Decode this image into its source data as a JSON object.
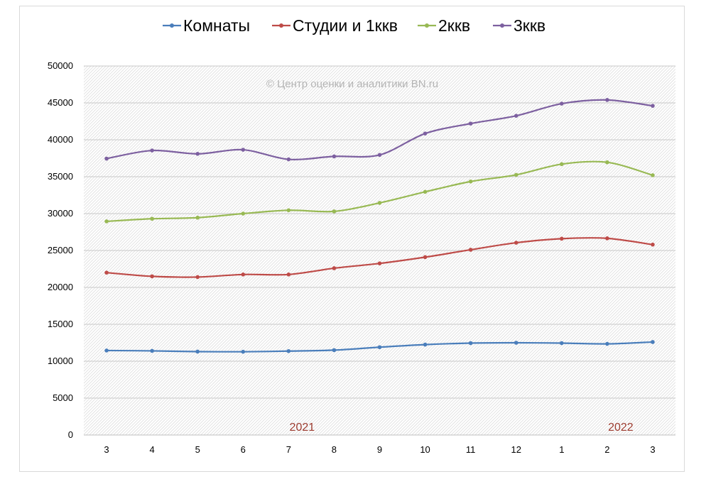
{
  "chart_data": {
    "type": "line",
    "title": "",
    "xlabel": "",
    "ylabel": "",
    "categories": [
      "3",
      "4",
      "5",
      "6",
      "7",
      "8",
      "9",
      "10",
      "11",
      "12",
      "1",
      "2",
      "3"
    ],
    "year_labels": [
      {
        "text": "2021",
        "category_index": 4
      },
      {
        "text": "2022",
        "category_index": 11
      }
    ],
    "ylim": [
      0,
      50000
    ],
    "yticks": [
      0,
      5000,
      10000,
      15000,
      20000,
      25000,
      30000,
      35000,
      40000,
      45000,
      50000
    ],
    "grid": true,
    "legend_position": "top",
    "watermark": "© Центр оценки и аналитики BN.ru",
    "series": [
      {
        "name": "Комнаты",
        "color": "#4a7ebb",
        "values": [
          11450,
          11400,
          11300,
          11280,
          11370,
          11500,
          11900,
          12250,
          12450,
          12500,
          12450,
          12350,
          12600
        ]
      },
      {
        "name": "Студии и 1ккв",
        "color": "#be4b48",
        "values": [
          22000,
          21500,
          21400,
          21750,
          21750,
          22600,
          23250,
          24100,
          25100,
          26050,
          26600,
          26650,
          25800
        ]
      },
      {
        "name": "2ккв",
        "color": "#98b954",
        "values": [
          28950,
          29300,
          29450,
          30000,
          30450,
          30300,
          31450,
          32950,
          34350,
          35250,
          36700,
          36950,
          35200
        ]
      },
      {
        "name": "3ккв",
        "color": "#7d60a0",
        "values": [
          37450,
          38550,
          38100,
          38650,
          37350,
          37750,
          37950,
          40850,
          42200,
          43250,
          44900,
          45400,
          44600
        ]
      }
    ]
  }
}
